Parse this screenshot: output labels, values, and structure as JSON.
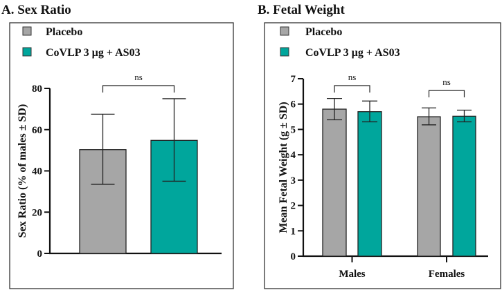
{
  "chart_data": [
    {
      "type": "bar",
      "title": "A. Sex Ratio",
      "ylabel": "Sex Ratio (% of males ± SD)",
      "xlabel": "",
      "ylim": [
        0,
        80
      ],
      "yticks": [
        "0",
        "20",
        "40",
        "60",
        "80"
      ],
      "categories": [
        ""
      ],
      "series": [
        {
          "name": "Placebo",
          "color": "#a6a6a6",
          "values": [
            50.3
          ],
          "sd_low": [
            33.5
          ],
          "sd_high": [
            67.5
          ]
        },
        {
          "name": "CoVLP 3 µg + AS03",
          "color": "#00a69c",
          "values": [
            54.8
          ],
          "sd_low": [
            35
          ],
          "sd_high": [
            75
          ]
        }
      ],
      "annotations": [
        "ns"
      ],
      "legend": "top-left",
      "grid": false
    },
    {
      "type": "bar",
      "title": "B. Fetal Weight",
      "ylabel": "Mean Fetal Weight (g ± SD)",
      "xlabel": "",
      "ylim": [
        0,
        7
      ],
      "yticks": [
        "0",
        "1",
        "2",
        "3",
        "4",
        "5",
        "6",
        "7"
      ],
      "categories": [
        "Males",
        "Females"
      ],
      "series": [
        {
          "name": "Placebo",
          "color": "#a6a6a6",
          "values": [
            5.8,
            5.5
          ],
          "sd_low": [
            5.38,
            5.18
          ],
          "sd_high": [
            6.22,
            5.85
          ]
        },
        {
          "name": "CoVLP 3 µg + AS03",
          "color": "#00a69c",
          "values": [
            5.7,
            5.52
          ],
          "sd_low": [
            5.3,
            5.3
          ],
          "sd_high": [
            6.12,
            5.76
          ]
        }
      ],
      "annotations": [
        "ns",
        "ns"
      ],
      "legend": "top-left",
      "grid": false
    }
  ]
}
